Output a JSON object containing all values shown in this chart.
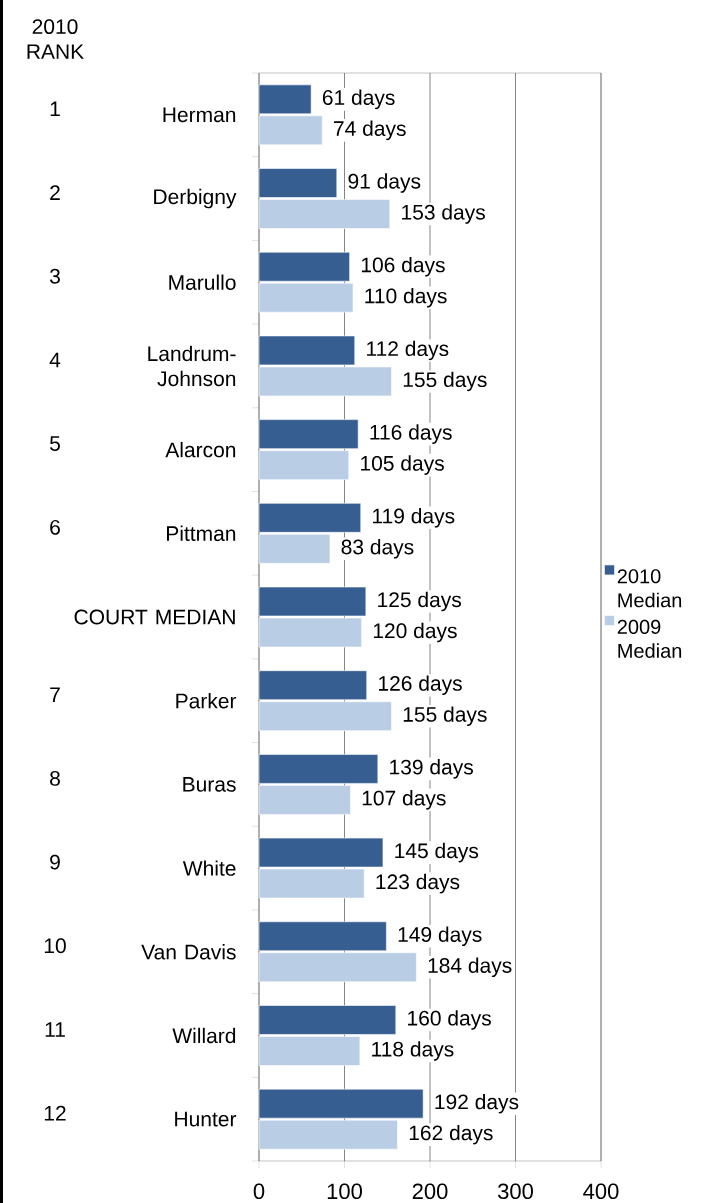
{
  "chart_data": {
    "type": "bar",
    "orientation": "horizontal",
    "categories": [
      "Herman",
      "Derbigny",
      "Marullo",
      "Landrum-Johnson",
      "Alarcon",
      "Pittman",
      "COURT MEDIAN",
      "Parker",
      "Buras",
      "White",
      "Van Davis",
      "Willard",
      "Hunter"
    ],
    "series": [
      {
        "name": "2010 Median",
        "color": "#375e91",
        "values": [
          61,
          91,
          106,
          112,
          116,
          119,
          125,
          126,
          139,
          145,
          149,
          160,
          192
        ],
        "value_labels": [
          "61 days",
          "91 days",
          "106 days",
          "112 days",
          "116 days",
          "119 days",
          "125 days",
          "126 days",
          "139 days",
          "145 days",
          "149 days",
          "160 days",
          "192 days"
        ]
      },
      {
        "name": "2009 Median",
        "color": "#b9cde5",
        "values": [
          74,
          153,
          110,
          155,
          105,
          83,
          120,
          155,
          107,
          123,
          184,
          118,
          162
        ],
        "value_labels": [
          "74 days",
          "153 days",
          "110 days",
          "155 days",
          "105 days",
          "83 days",
          "120 days",
          "155 days",
          "107 days",
          "123 days",
          "184 days",
          "118 days",
          "162 days"
        ]
      }
    ],
    "xlim": [
      0,
      400
    ],
    "xticks": [
      0,
      100,
      200,
      300,
      400
    ],
    "grid": "x",
    "legend": "right",
    "y2_categories": [
      "1",
      "2",
      "3",
      "4",
      "5",
      "6",
      null,
      "7",
      "8",
      "9",
      "10",
      "11",
      "12"
    ],
    "annotations": [
      "2010 RANK"
    ]
  }
}
